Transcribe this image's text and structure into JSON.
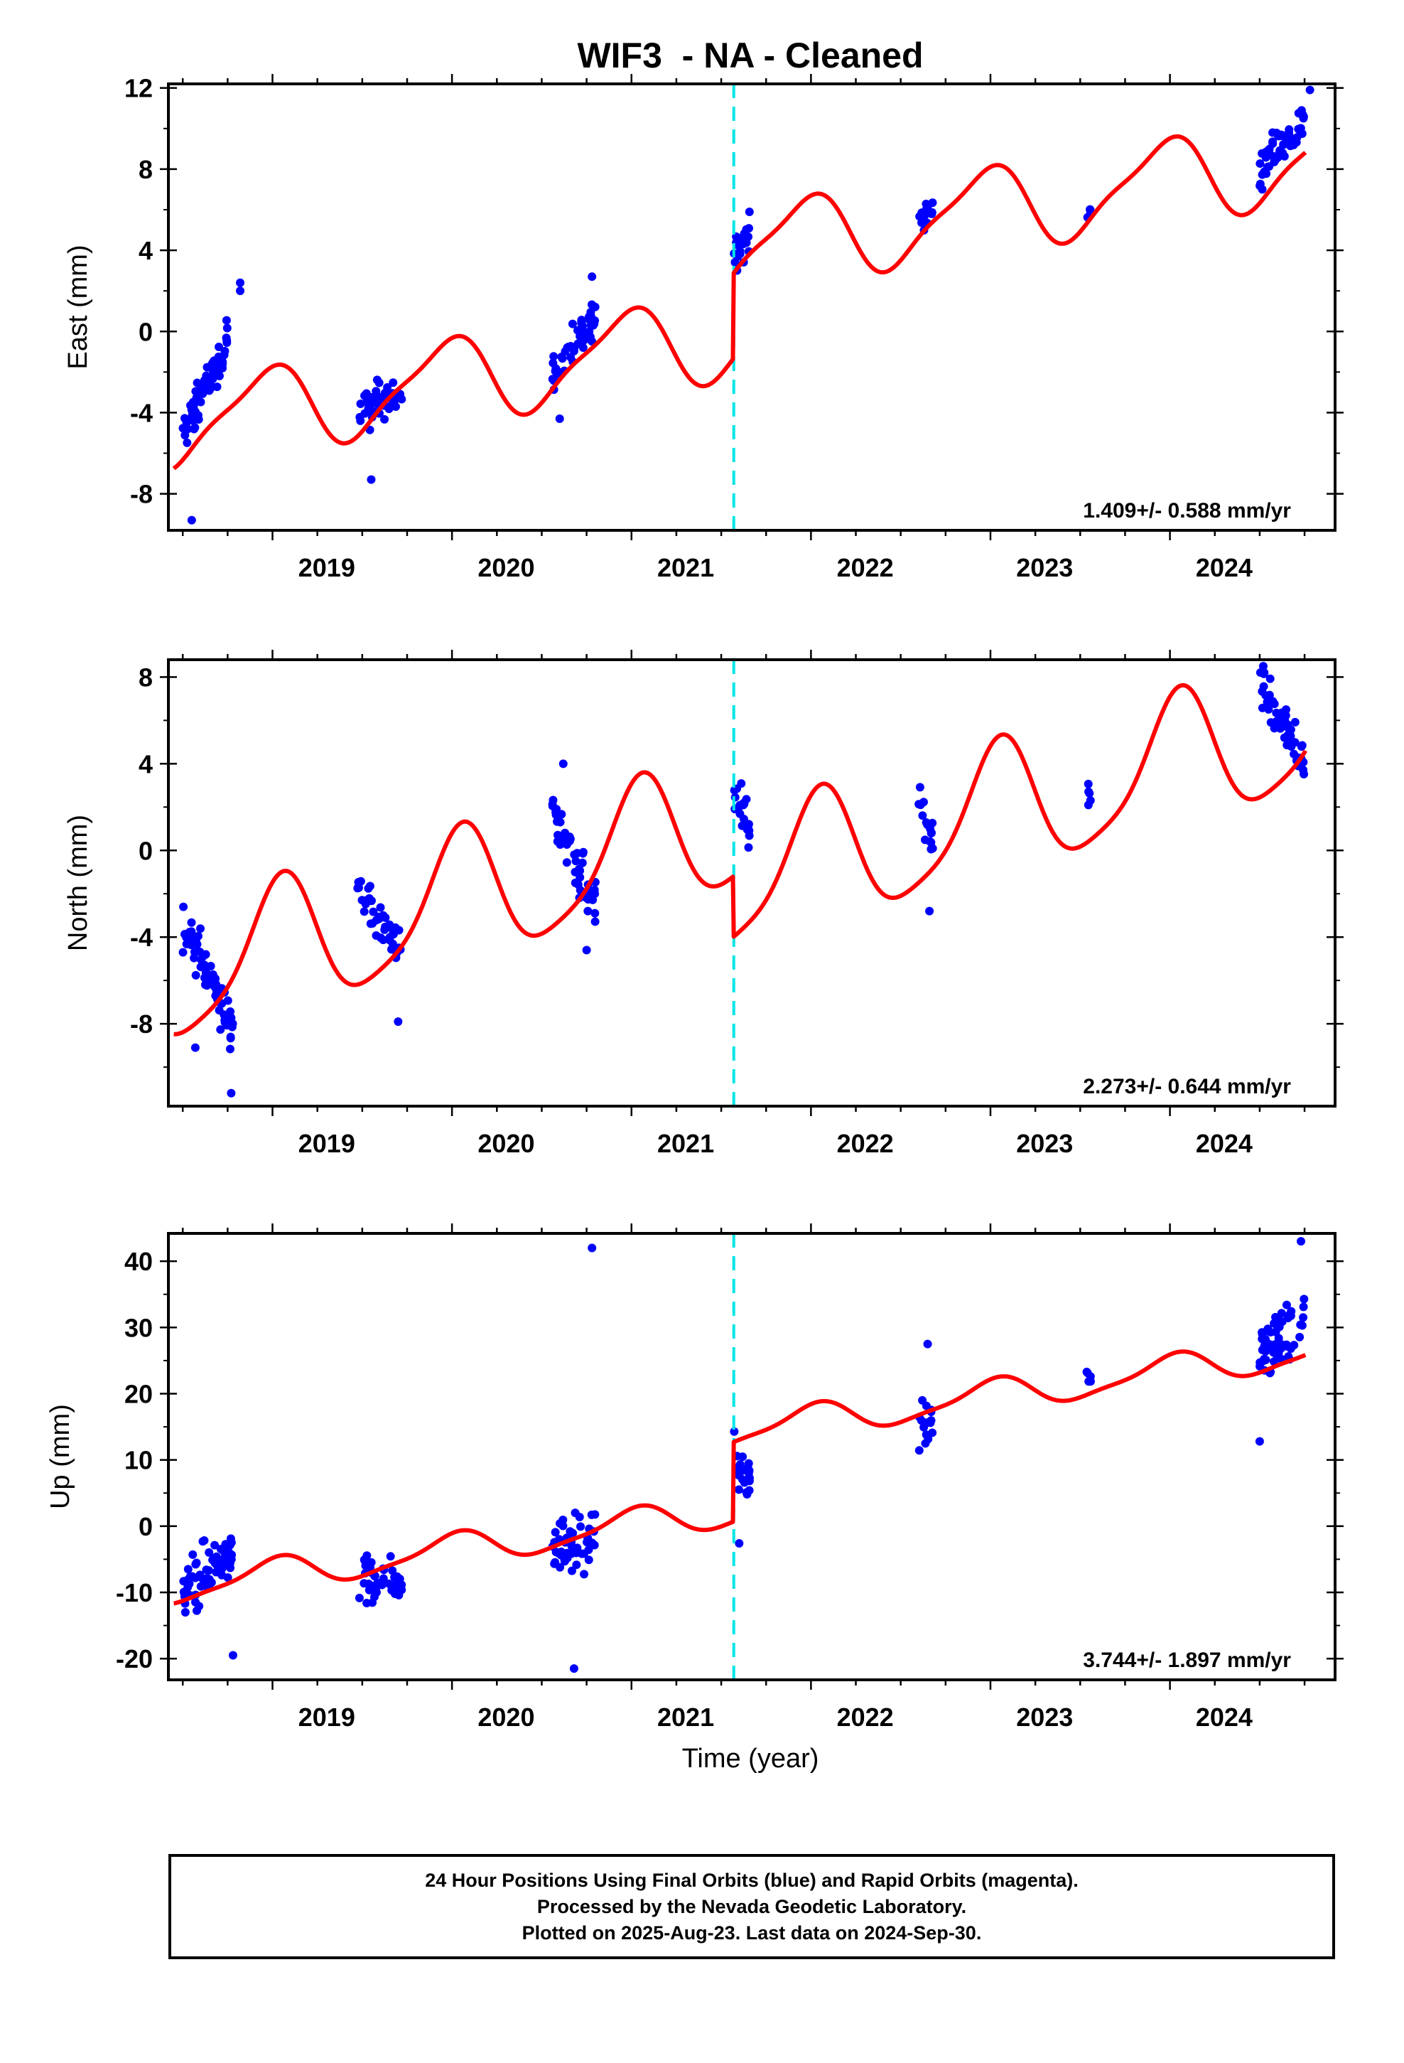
{
  "title": "WIF3  - NA - Cleaned",
  "colors": {
    "data": "#0000ff",
    "model": "#ff0000",
    "event": "#00e5e5",
    "frame": "#000000"
  },
  "chart_data": [
    {
      "type": "scatter",
      "ylabel": "East (mm)",
      "xlim": [
        2018.42,
        2024.92
      ],
      "ylim": [
        -9.8,
        12.2
      ],
      "yticks": [
        12,
        8,
        4,
        0,
        -4,
        -8
      ],
      "xticks": [
        2019,
        2020,
        2021,
        2022,
        2023,
        2024
      ],
      "rate": "1.409+/- 0.588 mm/yr",
      "event_x": 2021.57,
      "model": {
        "offset": -4.6,
        "jump": 4.2,
        "trend": 1.409,
        "amp_annual": 2.0,
        "amp_semi": 0.5,
        "phase_annual": 1.8,
        "phase_semi": 0.3
      },
      "clusters": [
        {
          "x0": 2018.5,
          "x1": 2018.75,
          "y0": -5.2,
          "y1": -0.5,
          "n": 70,
          "spread": 1.0
        },
        {
          "x0": 2019.48,
          "x1": 2019.72,
          "y0": -4.0,
          "y1": -2.8,
          "n": 45,
          "spread": 1.0
        },
        {
          "x0": 2020.56,
          "x1": 2020.8,
          "y0": -2.0,
          "y1": 0.8,
          "n": 50,
          "spread": 0.9
        },
        {
          "x0": 2021.57,
          "x1": 2021.66,
          "y0": 3.5,
          "y1": 5.0,
          "n": 22,
          "spread": 0.9
        },
        {
          "x0": 2022.6,
          "x1": 2022.68,
          "y0": 5.5,
          "y1": 6.0,
          "n": 16,
          "spread": 0.9
        },
        {
          "x0": 2023.53,
          "x1": 2023.56,
          "y0": 6.0,
          "y1": 6.0,
          "n": 5,
          "spread": 1.2
        },
        {
          "x0": 2024.5,
          "x1": 2024.75,
          "y0": 8.0,
          "y1": 10.5,
          "n": 60,
          "spread": 1.0
        }
      ],
      "outliers": [
        [
          2018.55,
          -9.3
        ],
        [
          2018.82,
          2.4
        ],
        [
          2018.82,
          2.0
        ],
        [
          2019.55,
          -7.3
        ],
        [
          2020.6,
          -4.3
        ],
        [
          2020.78,
          2.7
        ],
        [
          2024.78,
          11.9
        ]
      ]
    },
    {
      "type": "scatter",
      "ylabel": "North (mm)",
      "xlim": [
        2018.42,
        2024.92
      ],
      "ylim": [
        -11.8,
        8.8
      ],
      "yticks": [
        8,
        4,
        0,
        -4,
        -8
      ],
      "xticks": [
        2019,
        2020,
        2021,
        2022,
        2023,
        2024
      ],
      "rate": "2.273+/- 0.644 mm/yr",
      "event_x": 2021.57,
      "model": {
        "offset": -5.9,
        "jump": -2.8,
        "trend": 2.273,
        "amp_annual": 3.0,
        "amp_semi": 0.6,
        "phase_annual": 1.3,
        "phase_semi": 0.5
      },
      "clusters": [
        {
          "x0": 2018.5,
          "x1": 2018.78,
          "y0": -3.5,
          "y1": -8.0,
          "n": 70,
          "spread": 1.1
        },
        {
          "x0": 2019.47,
          "x1": 2019.72,
          "y0": -1.5,
          "y1": -4.8,
          "n": 45,
          "spread": 1.0
        },
        {
          "x0": 2020.56,
          "x1": 2020.8,
          "y0": 1.8,
          "y1": -2.5,
          "n": 50,
          "spread": 1.2
        },
        {
          "x0": 2021.57,
          "x1": 2021.66,
          "y0": 2.8,
          "y1": 1.0,
          "n": 22,
          "spread": 1.0
        },
        {
          "x0": 2022.6,
          "x1": 2022.68,
          "y0": 2.0,
          "y1": 0.5,
          "n": 16,
          "spread": 1.0
        },
        {
          "x0": 2023.53,
          "x1": 2023.56,
          "y0": 3.0,
          "y1": 2.0,
          "n": 5,
          "spread": 0.9
        },
        {
          "x0": 2024.5,
          "x1": 2024.75,
          "y0": 7.5,
          "y1": 4.0,
          "n": 60,
          "spread": 1.0
        }
      ],
      "outliers": [
        [
          2018.57,
          -9.1
        ],
        [
          2018.77,
          -11.2
        ],
        [
          2019.7,
          -7.9
        ],
        [
          2020.62,
          4.0
        ],
        [
          2020.75,
          -4.6
        ],
        [
          2022.66,
          -2.8
        ],
        [
          2024.52,
          8.5
        ]
      ]
    },
    {
      "type": "scatter",
      "ylabel": "Up (mm)",
      "xlim": [
        2018.42,
        2024.92
      ],
      "ylim": [
        -23.2,
        44.2
      ],
      "yticks": [
        40,
        30,
        20,
        10,
        0,
        -10,
        -20
      ],
      "xticks": [
        2019,
        2020,
        2021,
        2022,
        2023,
        2024
      ],
      "rate": "3.744+/- 1.897 mm/yr",
      "event_x": 2021.57,
      "model": {
        "offset": -9.4,
        "jump": 12.0,
        "trend": 3.744,
        "amp_annual": 2.3,
        "amp_semi": 0.6,
        "phase_annual": 1.5,
        "phase_semi": 0.4
      },
      "clusters": [
        {
          "x0": 2018.5,
          "x1": 2018.78,
          "y0": -10.0,
          "y1": -4.0,
          "n": 70,
          "spread": 4.2
        },
        {
          "x0": 2019.47,
          "x1": 2019.72,
          "y0": -8.5,
          "y1": -7.0,
          "n": 45,
          "spread": 3.8
        },
        {
          "x0": 2020.56,
          "x1": 2020.8,
          "y0": -4.0,
          "y1": -2.0,
          "n": 50,
          "spread": 4.0
        },
        {
          "x0": 2021.57,
          "x1": 2021.66,
          "y0": 10.0,
          "y1": 7.0,
          "n": 22,
          "spread": 3.5
        },
        {
          "x0": 2022.6,
          "x1": 2022.68,
          "y0": 14.0,
          "y1": 16.0,
          "n": 16,
          "spread": 4.0
        },
        {
          "x0": 2023.53,
          "x1": 2023.56,
          "y0": 23.0,
          "y1": 23.0,
          "n": 5,
          "spread": 1.5
        },
        {
          "x0": 2024.5,
          "x1": 2024.75,
          "y0": 26.0,
          "y1": 31.0,
          "n": 60,
          "spread": 4.2
        }
      ],
      "outliers": [
        [
          2020.78,
          42.0
        ],
        [
          2020.68,
          -21.5
        ],
        [
          2018.78,
          -19.5
        ],
        [
          2024.5,
          12.8
        ],
        [
          2024.73,
          43.0
        ],
        [
          2021.6,
          -2.6
        ],
        [
          2022.65,
          27.5
        ]
      ]
    }
  ],
  "xlabel": "Time (year)",
  "footer": {
    "line1": "24 Hour Positions Using Final Orbits (blue) and Rapid Orbits (magenta).",
    "line2": "Processed by the Nevada Geodetic Laboratory.",
    "line3": "Plotted on 2025-Aug-23. Last data on 2024-Sep-30."
  }
}
